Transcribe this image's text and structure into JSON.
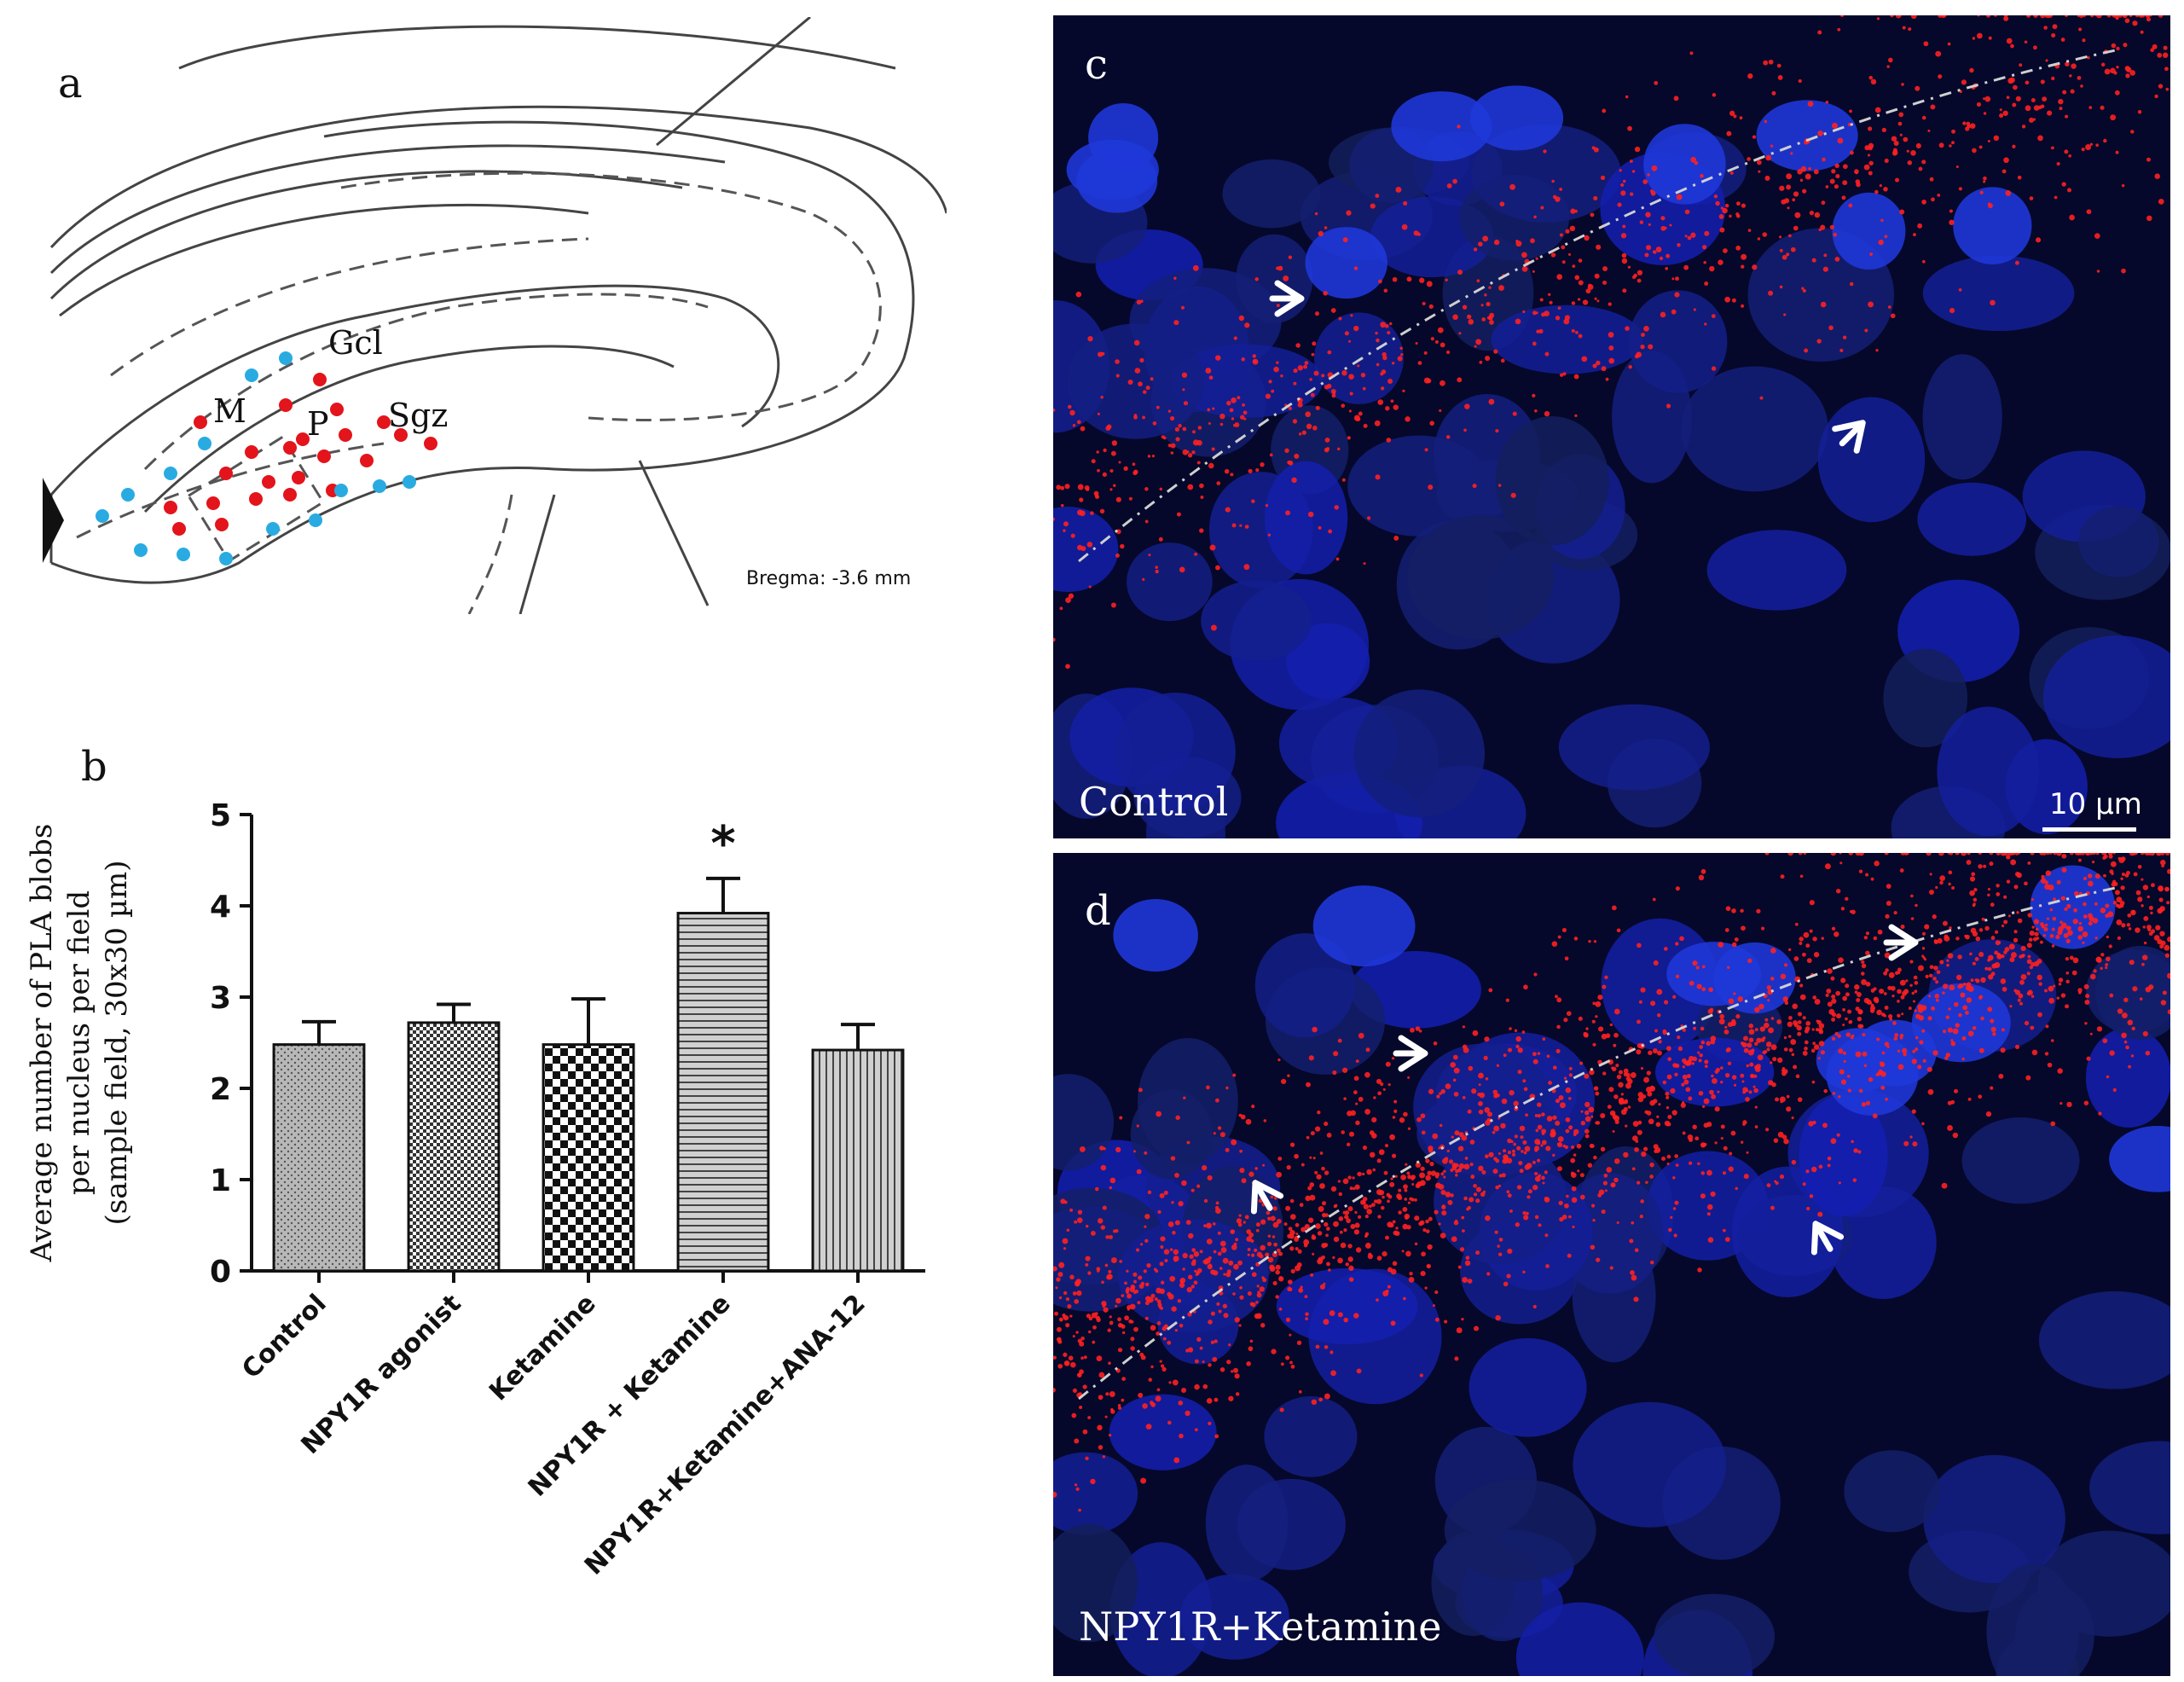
{
  "panel_a": {
    "letter": "a",
    "labels": {
      "gcl": "Gcl",
      "m": "M",
      "p": "P",
      "sgz": "Sgz"
    },
    "bregma": "Bregma: -3.6 mm",
    "colors": {
      "red": "#e3141b",
      "blue": "#29abe2"
    }
  },
  "panel_c": {
    "letter": "c",
    "label": "Control",
    "scalebar": "10 µm"
  },
  "panel_d": {
    "letter": "d",
    "label": "NPY1R+Ketamine"
  },
  "chart_data": {
    "letter": "b",
    "type": "bar",
    "categories": [
      "Control",
      "NPY1R agonist",
      "Ketamine",
      "NPY1R + Ketamine",
      "NPY1R+Ketamine+ANA-12"
    ],
    "values": [
      2.48,
      2.72,
      2.48,
      3.92,
      2.42
    ],
    "errors": [
      0.25,
      0.2,
      0.5,
      0.38,
      0.28
    ],
    "significance": [
      "",
      "",
      "",
      "*",
      ""
    ],
    "patterns": [
      "dots",
      "fine-checker",
      "checker",
      "horizontal-lines",
      "vertical-lines"
    ],
    "ylabel_lines": [
      "Average number of PLA blobs",
      "per nucleus per field",
      "(sample field, 30x30 µm)"
    ],
    "yticks": [
      0,
      1,
      2,
      3,
      4,
      5
    ],
    "ylim": [
      0,
      5
    ],
    "bar_color": "#b0b0b0"
  }
}
